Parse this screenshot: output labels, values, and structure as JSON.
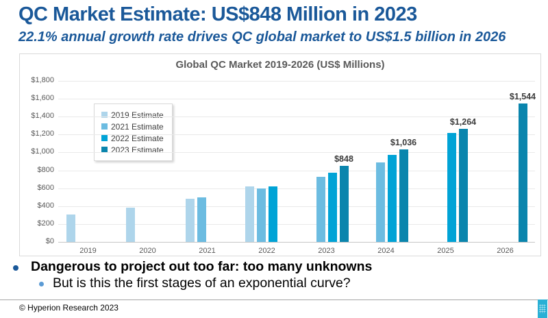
{
  "header": {
    "title": "QC Market Estimate: US$848 Million in 2023",
    "subtitle": "22.1% annual growth rate drives QC global market to US$1.5 billion in 2026"
  },
  "chart_data": {
    "type": "bar",
    "title": "Global QC Market 2019-2026 (US$ Millions)",
    "categories": [
      "2019",
      "2020",
      "2021",
      "2022",
      "2023",
      "2024",
      "2025",
      "2026"
    ],
    "series": [
      {
        "name": "2019 Estimate",
        "color": "#aed5eb",
        "values": [
          305,
          385,
          485,
          620,
          null,
          null,
          null,
          null
        ]
      },
      {
        "name": "2021 Estimate",
        "color": "#6cbce1",
        "values": [
          null,
          null,
          495,
          600,
          730,
          890,
          null,
          null
        ]
      },
      {
        "name": "2022 Estimate",
        "color": "#00a3d6",
        "values": [
          null,
          null,
          null,
          620,
          770,
          970,
          1215,
          null
        ]
      },
      {
        "name": "2023 Estimate",
        "color": "#0a85ad",
        "values": [
          null,
          null,
          null,
          null,
          848,
          1036,
          1264,
          1544
        ],
        "data_labels": [
          "",
          "",
          "",
          "",
          "$848",
          "$1,036",
          "$1,264",
          "$1,544"
        ]
      }
    ],
    "ylim": [
      0,
      1800
    ],
    "ytick_step": 200,
    "ytick_labels": [
      "$0",
      "$200",
      "$400",
      "$600",
      "$800",
      "$1,000",
      "$1,200",
      "$1,400",
      "$1,600",
      "$1,800"
    ],
    "legend_position": "inside-upper-left",
    "grid": true
  },
  "bullets": {
    "main": "Dangerous to project out too far: too many unknowns",
    "sub": "But is this the first stages of an exponential curve?"
  },
  "footer": {
    "copyright": "© Hyperion Research 2023"
  },
  "colors": {
    "accent_blue": "#1a5899",
    "sub_bullet_blue": "#5b9bd5",
    "logo_cyan": "#2ab0d5"
  }
}
